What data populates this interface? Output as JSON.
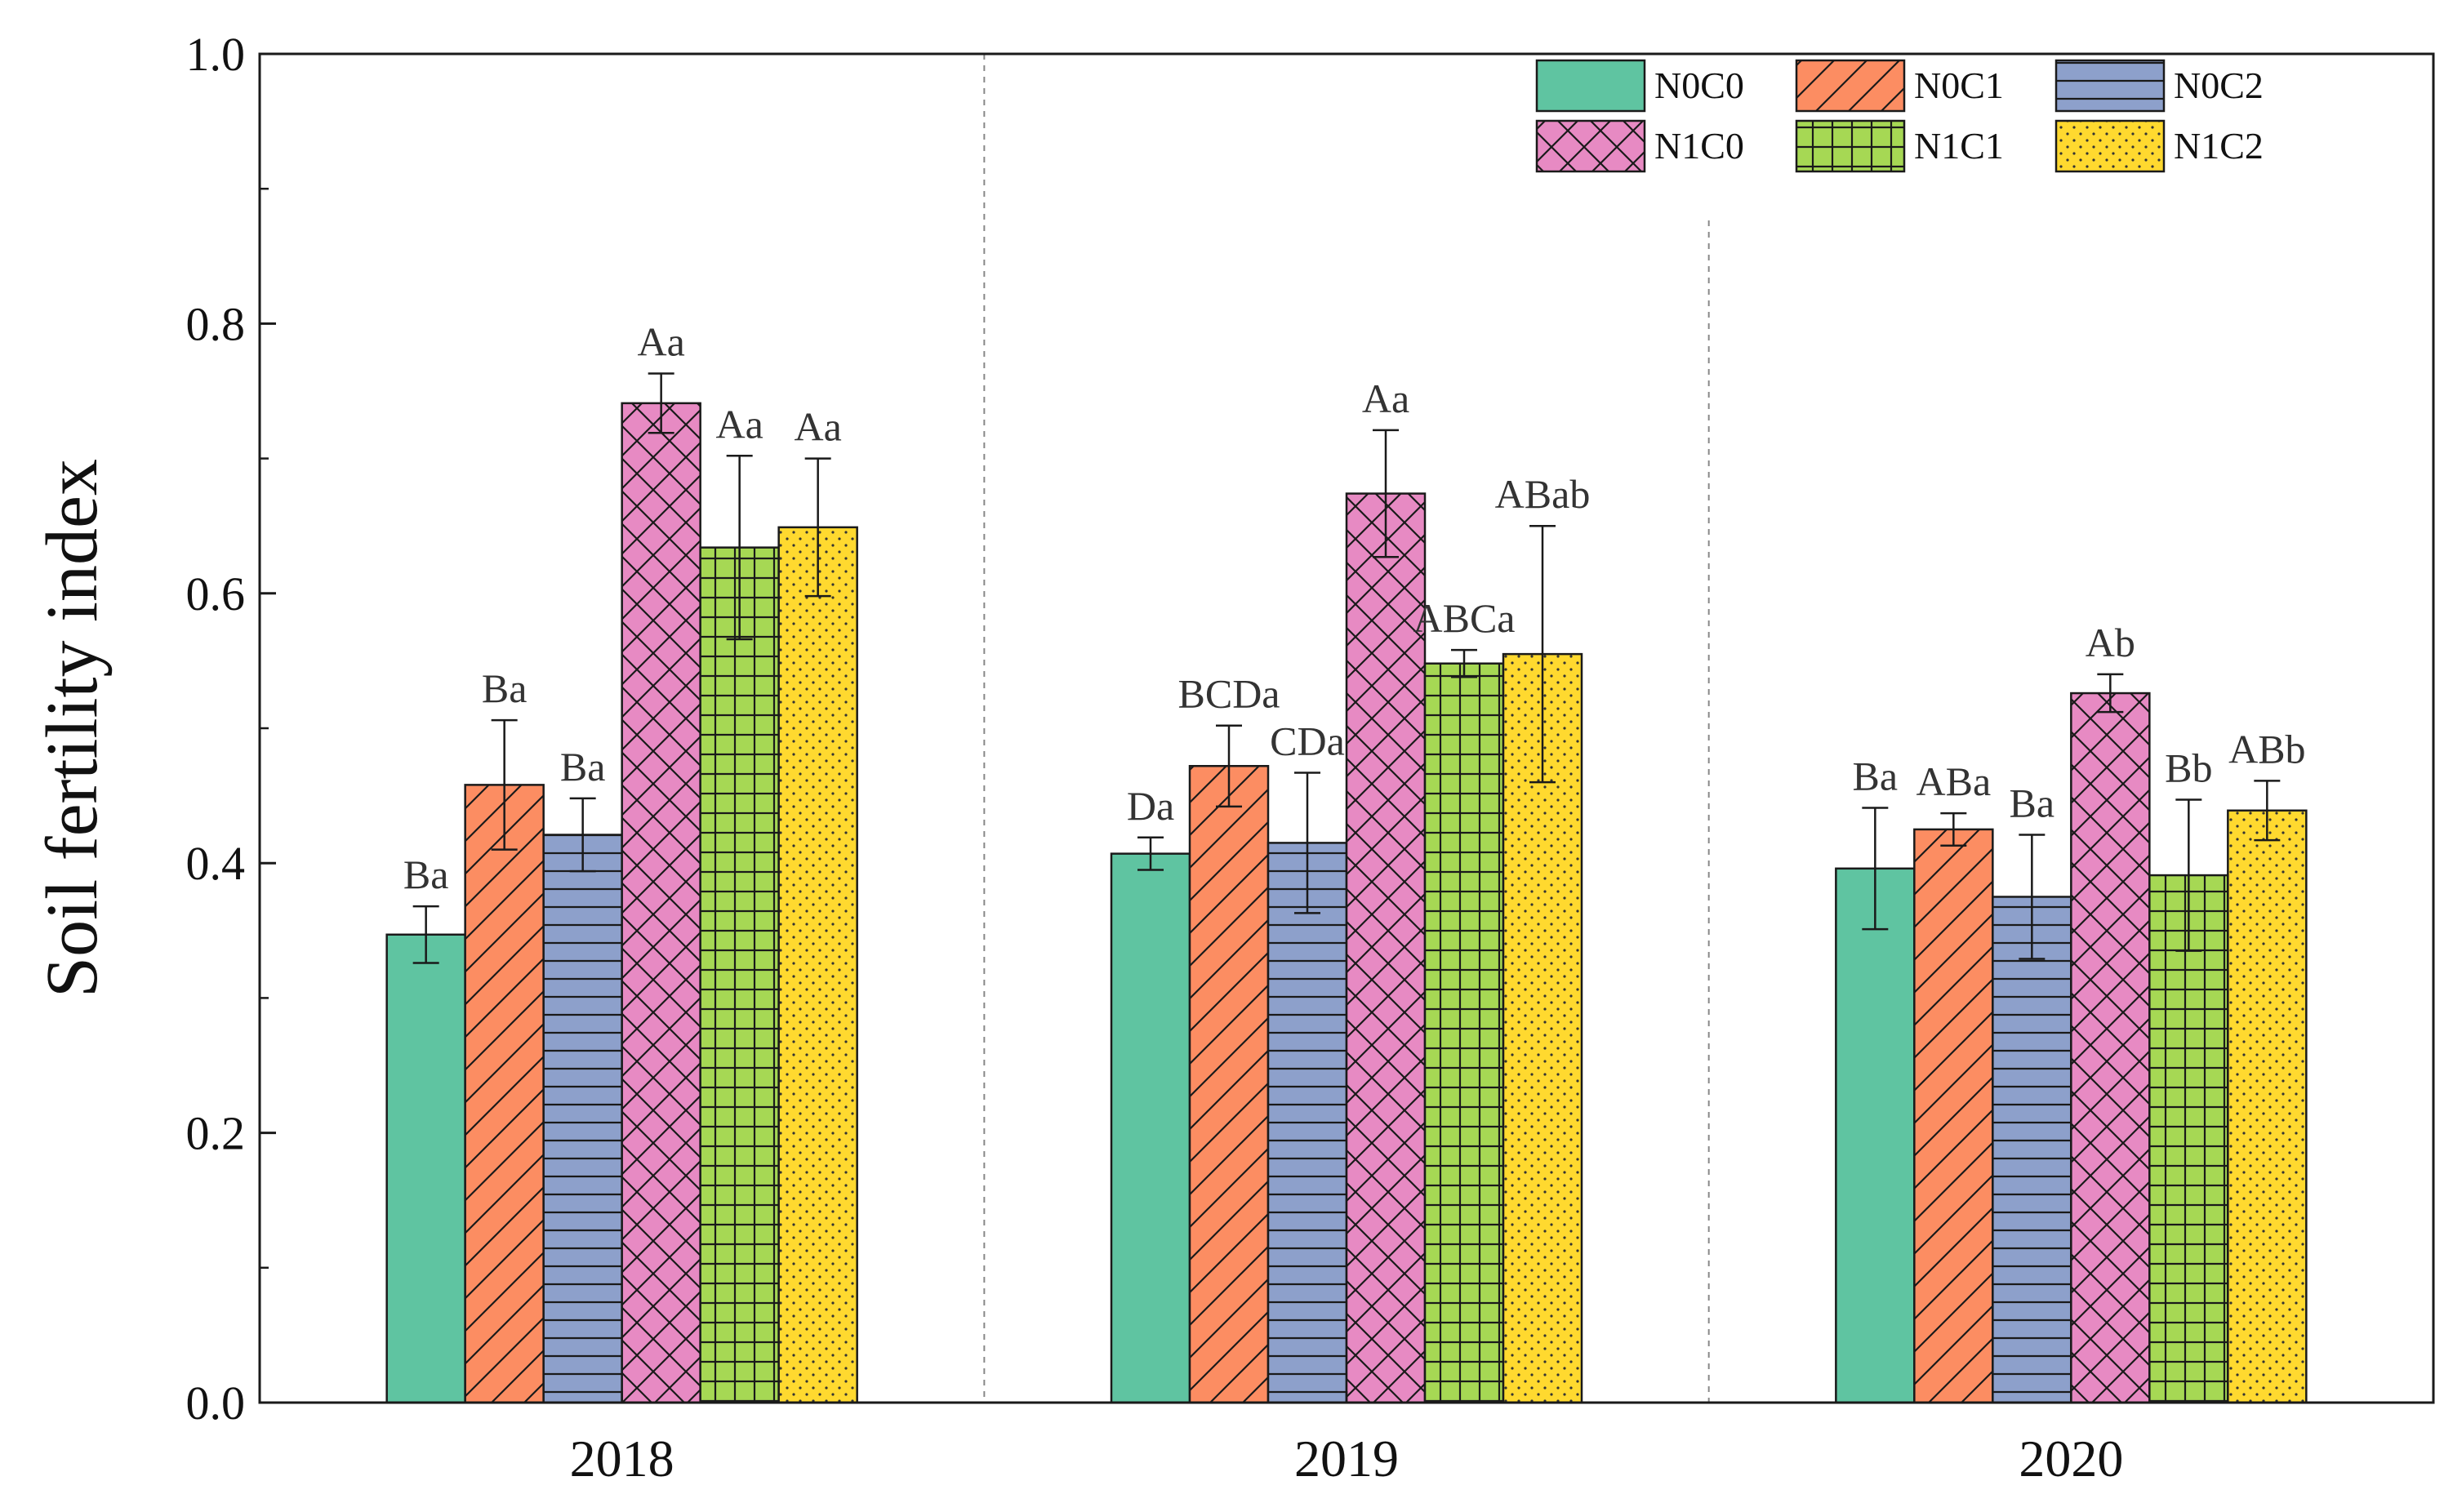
{
  "chart_data": {
    "type": "bar",
    "title": "",
    "xlabel": "",
    "ylabel": "Soil fertility index",
    "ylim": [
      0.0,
      1.0
    ],
    "yticks": [
      "0.0",
      "0.2",
      "0.4",
      "0.6",
      "0.8",
      "1.0"
    ],
    "grid": false,
    "legend_position": "top-right",
    "categories": [
      "2018",
      "2019",
      "2020"
    ],
    "series": [
      {
        "name": "N0C0",
        "color": "#5FC4A1",
        "pattern": "solid",
        "values": [
          0.347,
          0.407,
          0.396
        ],
        "errors": [
          0.021,
          0.012,
          0.045
        ],
        "labels": [
          "Ba",
          "Da",
          "Ba"
        ]
      },
      {
        "name": "N0C1",
        "color": "#FC8D62",
        "pattern": "diagonal",
        "values": [
          0.458,
          0.472,
          0.425
        ],
        "errors": [
          0.048,
          0.03,
          0.012
        ],
        "labels": [
          "Ba",
          "BCDa",
          "ABa"
        ]
      },
      {
        "name": "N0C2",
        "color": "#8DA0CB",
        "pattern": "horizontal",
        "values": [
          0.421,
          0.415,
          0.375
        ],
        "errors": [
          0.027,
          0.052,
          0.046
        ],
        "labels": [
          "Ba",
          "CDa",
          "Ba"
        ]
      },
      {
        "name": "N1C0",
        "color": "#E78AC3",
        "pattern": "crosshatch",
        "values": [
          0.741,
          0.674,
          0.526
        ],
        "errors": [
          0.022,
          0.047,
          0.014
        ],
        "labels": [
          "Aa",
          "Aa",
          "Ab"
        ]
      },
      {
        "name": "N1C1",
        "color": "#A6D854",
        "pattern": "grid",
        "values": [
          0.634,
          0.548,
          0.391
        ],
        "errors": [
          0.068,
          0.01,
          0.056
        ],
        "labels": [
          "Aa",
          "ABCa",
          "Bb"
        ]
      },
      {
        "name": "N1C2",
        "color": "#FFD92F",
        "pattern": "dots",
        "values": [
          0.649,
          0.555,
          0.439
        ],
        "errors": [
          0.051,
          0.095,
          0.022
        ],
        "labels": [
          "Aa",
          "ABab",
          "ABb"
        ]
      }
    ]
  }
}
